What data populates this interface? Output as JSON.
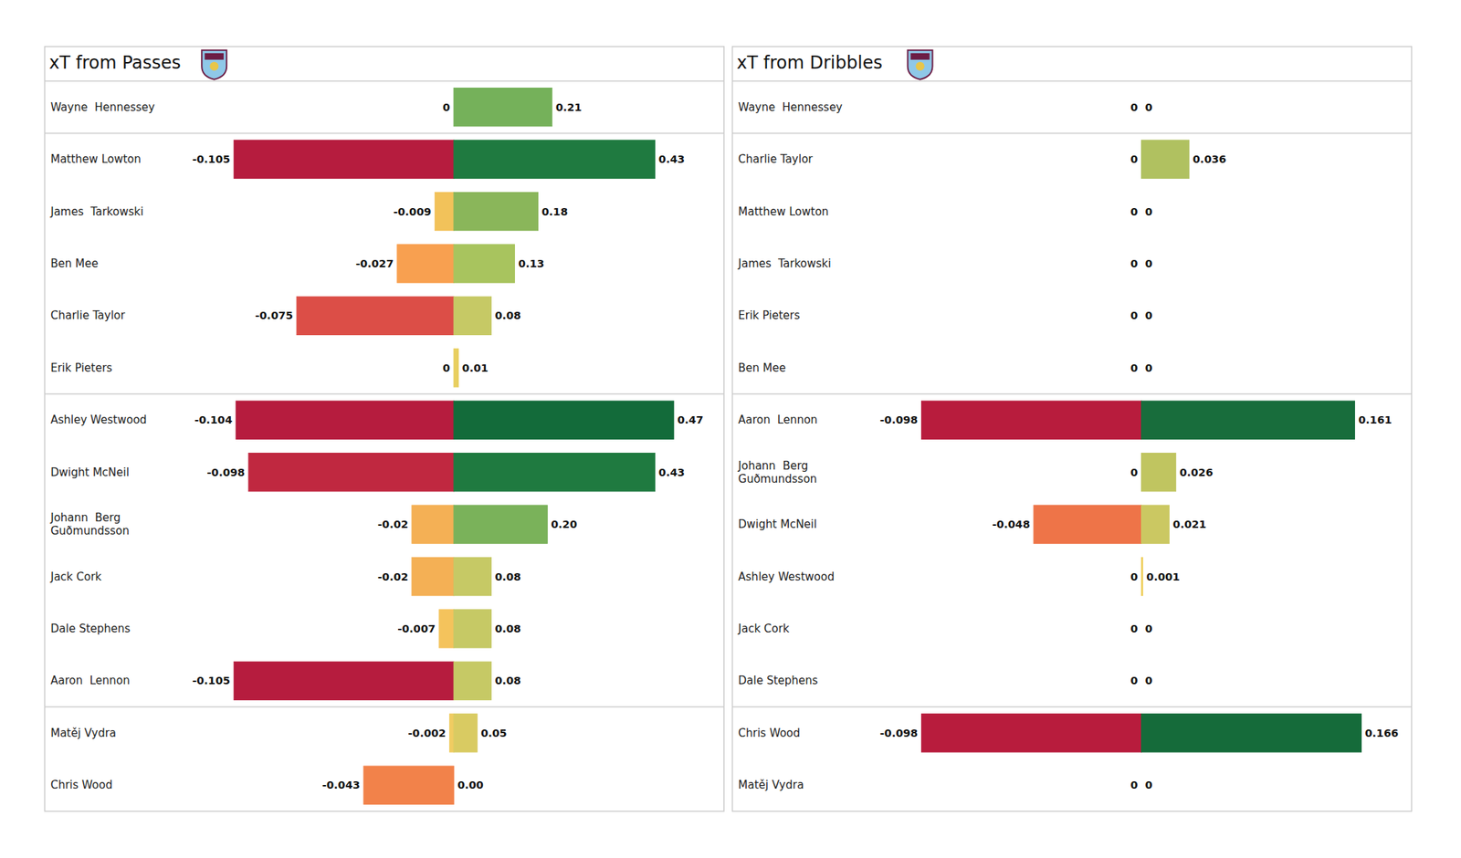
{
  "chart_data": [
    {
      "type": "bar",
      "title": "xT from Passes",
      "orientation": "horizontal",
      "data_labels": true,
      "tick_labels": false,
      "categories": [
        "Wayne  Hennessey",
        "Matthew Lowton",
        "James  Tarkowski",
        "Ben Mee",
        "Charlie Taylor",
        "Erik Pieters",
        "Ashley Westwood",
        "Dwight McNeil",
        "Johann  Berg\nGuðmundsson",
        "Jack Cork",
        "Dale Stephens",
        "Aaron  Lennon",
        "Matěj Vydra",
        "Chris Wood"
      ],
      "series": [
        {
          "xlim": [
            -0.105,
            0
          ],
          "values": [
            0,
            -0.105,
            -0.009,
            -0.027,
            -0.075,
            0,
            -0.104,
            -0.098,
            -0.02,
            -0.02,
            -0.007,
            -0.105,
            -0.002,
            -0.043
          ],
          "colors": [
            "#f2d36a",
            "#b61c3e",
            "#f2c25a",
            "#f8a050",
            "#dc4e47",
            "#f2d36a",
            "#b61c3e",
            "#c02840",
            "#f4b055",
            "#f4b055",
            "#f4c35c",
            "#b61c3e",
            "#f0cc62",
            "#f2824a"
          ]
        },
        {
          "xlim": [
            0,
            0.47
          ],
          "values": [
            0.21,
            0.43,
            0.18,
            0.13,
            0.08,
            0.01,
            0.47,
            0.43,
            0.2,
            0.08,
            0.08,
            0.08,
            0.05,
            0
          ],
          "value_labels": [
            "0.21",
            "0.43",
            "0.18",
            "0.13",
            "0.08",
            "0.01",
            "0.47",
            "0.43",
            "0.20",
            "0.08",
            "0.08",
            "0.08",
            "0.05",
            "0.00"
          ],
          "colors": [
            "#75b15a",
            "#1f7a40",
            "#8ab65a",
            "#a8c45e",
            "#c6c965",
            "#e8cf5f",
            "#136b3a",
            "#1f7a40",
            "#7ab25a",
            "#c6c965",
            "#c6c965",
            "#c6c965",
            "#d9cb62",
            "#f0884a"
          ]
        }
      ]
    },
    {
      "type": "bar",
      "title": "xT from Dribbles",
      "orientation": "horizontal",
      "data_labels": true,
      "tick_labels": false,
      "categories": [
        "Wayne  Hennessey",
        "Charlie Taylor",
        "Matthew Lowton",
        "James  Tarkowski",
        "Erik Pieters",
        "Ben Mee",
        "Aaron  Lennon",
        "Johann  Berg\nGuðmundsson",
        "Dwight McNeil",
        "Ashley Westwood",
        "Jack Cork",
        "Dale Stephens",
        "Chris Wood",
        "Matěj Vydra"
      ],
      "series": [
        {
          "xlim": [
            -0.098,
            0
          ],
          "values": [
            0,
            0,
            0,
            0,
            0,
            0,
            -0.098,
            0,
            -0.048,
            0,
            0,
            0,
            -0.098,
            0
          ],
          "colors": [
            "#f0d060",
            "#f0d060",
            "#f0d060",
            "#f0d060",
            "#f0d060",
            "#f0d060",
            "#b81c3d",
            "#f0d060",
            "#ee7448",
            "#f0d060",
            "#f0d060",
            "#f0d060",
            "#b81c3d",
            "#f0d060"
          ]
        },
        {
          "xlim": [
            0,
            0.166
          ],
          "values": [
            0,
            0.036,
            0,
            0,
            0,
            0,
            0.161,
            0.026,
            0.021,
            0.001,
            0,
            0,
            0.166,
            0
          ],
          "colors": [
            "#f0d060",
            "#b0c160",
            "#f0d060",
            "#f0d060",
            "#f0d060",
            "#f0d060",
            "#186d3c",
            "#c0c560",
            "#cbc862",
            "#efd060",
            "#f0d060",
            "#f0d060",
            "#156b3a",
            "#f0d060"
          ]
        }
      ]
    }
  ]
}
